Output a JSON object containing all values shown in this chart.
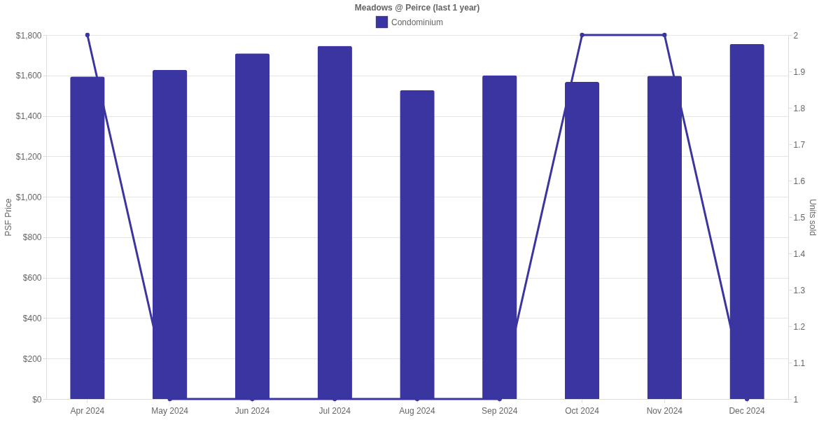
{
  "chart_data": {
    "type": "bar",
    "title": "Meadows @ Peirce (last 1 year)",
    "xlabel": null,
    "ylabel": "PSF Price",
    "y2label": "Units sold",
    "categories": [
      "Apr 2024",
      "May 2024",
      "Jun 2024",
      "Jul 2024",
      "Aug 2024",
      "Sep 2024",
      "Oct 2024",
      "Nov 2024",
      "Dec 2024"
    ],
    "series": [
      {
        "name": "Condominium",
        "color": "#3a35a0",
        "values": [
          1595,
          1628,
          1709,
          1746,
          1527,
          1601,
          1568,
          1598,
          1756
        ]
      },
      {
        "type": "line",
        "axis": "y2",
        "color": "#3a35a0",
        "marker": "circle",
        "line_style": "solid",
        "values": [
          2,
          1,
          1,
          1,
          1,
          1,
          2,
          2,
          1
        ]
      }
    ],
    "ylim": [
      0,
      1800
    ],
    "yticks": [
      {
        "value": 0,
        "label": "$0"
      },
      {
        "value": 200,
        "label": "$200"
      },
      {
        "value": 400,
        "label": "$400"
      },
      {
        "value": 600,
        "label": "$600"
      },
      {
        "value": 800,
        "label": "$800"
      },
      {
        "value": 1000,
        "label": "$1,000"
      },
      {
        "value": 1200,
        "label": "$1,200"
      },
      {
        "value": 1400,
        "label": "$1,400"
      },
      {
        "value": 1600,
        "label": "$1,600"
      },
      {
        "value": 1800,
        "label": "$1,800"
      }
    ],
    "y2lim": [
      1,
      2
    ],
    "y2ticks": [
      1,
      1.1,
      1.2,
      1.3,
      1.4,
      1.5,
      1.6,
      1.7,
      1.8,
      1.9,
      2
    ],
    "grid": "y",
    "legend": "top"
  }
}
